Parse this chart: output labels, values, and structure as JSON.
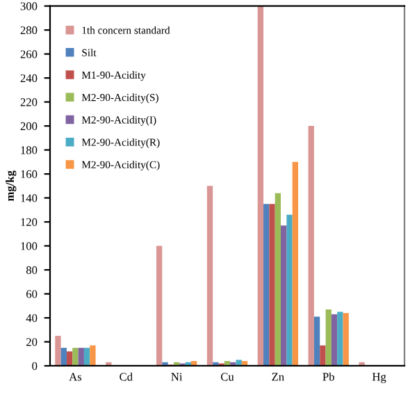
{
  "chart_data": {
    "type": "bar",
    "ylabel": "mg/kg",
    "categories": [
      "As",
      "Cd",
      "Ni",
      "Cu",
      "Zn",
      "Pb",
      "Hg"
    ],
    "series": [
      {
        "name": "1th concern standard",
        "color": "#d99694",
        "values": [
          25,
          3,
          100,
          150,
          300,
          200,
          3
        ]
      },
      {
        "name": "Silt",
        "color": "#4f81bd",
        "values": [
          15,
          0,
          3,
          3,
          135,
          41,
          0
        ]
      },
      {
        "name": "M1-90-Acidity",
        "color": "#c0504d",
        "values": [
          12,
          0,
          1,
          2,
          135,
          17,
          0
        ]
      },
      {
        "name": "M2-90-Acidity(S)",
        "color": "#9bbb59",
        "values": [
          15,
          0,
          3,
          4,
          144,
          47,
          0
        ]
      },
      {
        "name": "M2-90-Acidity(I)",
        "color": "#8064a2",
        "values": [
          15,
          0,
          2,
          3,
          117,
          43,
          0
        ]
      },
      {
        "name": "M2-90-Acidity(R)",
        "color": "#4bacc6",
        "values": [
          15,
          0,
          3,
          5,
          126,
          45,
          0
        ]
      },
      {
        "name": "M2-90-Acidity(C)",
        "color": "#f79646",
        "values": [
          17,
          0,
          4,
          4,
          170,
          44,
          0
        ]
      }
    ],
    "ylim": [
      0,
      300
    ],
    "yticks": [
      0,
      20,
      40,
      60,
      80,
      100,
      120,
      140,
      160,
      180,
      200,
      220,
      240,
      260,
      280,
      300
    ],
    "grid": false,
    "legend": "top left"
  }
}
